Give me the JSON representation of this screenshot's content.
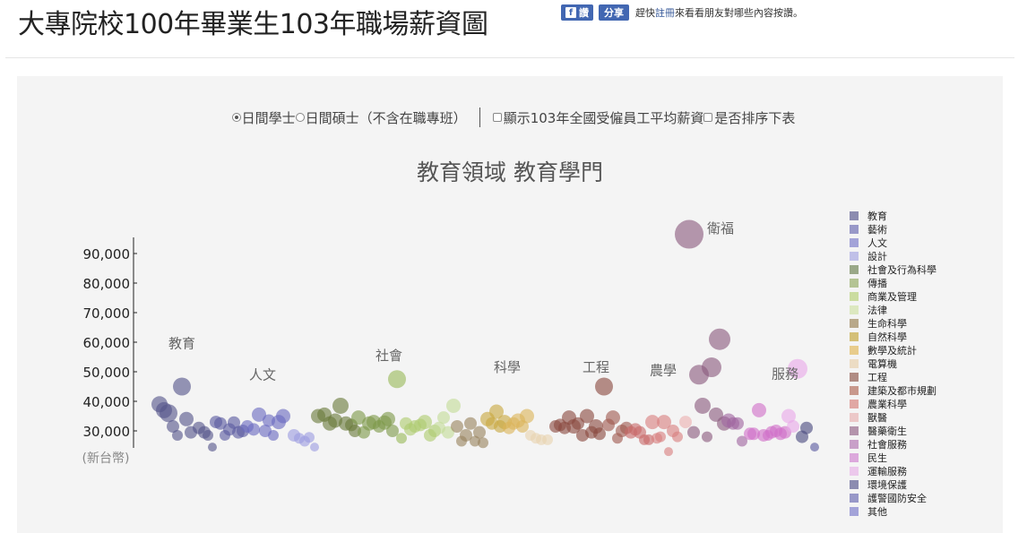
{
  "header": {
    "title": "大專院校100年畢業生103年職場薪資圖",
    "fb_label": "讚",
    "share_label": "分享",
    "social_text_before": "趕快",
    "social_link": "註冊",
    "social_text_after": "來看看朋友對哪些內容按讚。"
  },
  "controls": {
    "option1": "日間學士",
    "option2": "日間碩士（不含在職專班）",
    "check1": "顯示103年全國受僱員工平均薪資",
    "check2": "是否排序下表"
  },
  "chart_data": {
    "type": "scatter",
    "title": "教育領域 教育學門",
    "ylabel": "(新台幣)",
    "y_ticks": [
      "30,000",
      "40,000",
      "50,000",
      "60,000",
      "70,000",
      "80,000",
      "90,000"
    ],
    "y_tick_values": [
      30000,
      40000,
      50000,
      60000,
      70000,
      80000,
      90000
    ],
    "group_labels": [
      {
        "label": "教育",
        "value": 58000,
        "x": 203
      },
      {
        "label": "人文",
        "value": 47500,
        "x": 293
      },
      {
        "label": "社會",
        "value": 54000,
        "x": 434
      },
      {
        "label": "科學",
        "value": 50000,
        "x": 566
      },
      {
        "label": "工程",
        "value": 50000,
        "x": 665
      },
      {
        "label": "農學",
        "value": 49000,
        "x": 740
      },
      {
        "label": "服務",
        "value": 47800,
        "x": 876
      },
      {
        "label": "衛福",
        "value": 97000,
        "x": 804
      }
    ],
    "legend": [
      {
        "name": "教育",
        "color": "#8c8cb0"
      },
      {
        "name": "藝術",
        "color": "#9898c8"
      },
      {
        "name": "人文",
        "color": "#a3a3d8"
      },
      {
        "name": "設計",
        "color": "#c0c0e8"
      },
      {
        "name": "社會及行為科學",
        "color": "#9aa888"
      },
      {
        "name": "傳播",
        "color": "#b4c494"
      },
      {
        "name": "商業及管理",
        "color": "#cbdca0"
      },
      {
        "name": "法律",
        "color": "#dce8c0"
      },
      {
        "name": "生命科學",
        "color": "#b8a88a"
      },
      {
        "name": "自然科學",
        "color": "#d4c078"
      },
      {
        "name": "數學及統計",
        "color": "#e8cc8c"
      },
      {
        "name": "電算機",
        "color": "#ecdcc4"
      },
      {
        "name": "工程",
        "color": "#b08c84"
      },
      {
        "name": "建築及都市規劃",
        "color": "#c8988c"
      },
      {
        "name": "農業科學",
        "color": "#e0a8a4"
      },
      {
        "name": "獸醫",
        "color": "#ecc8c8"
      },
      {
        "name": "醫藥衛生",
        "color": "#b494ac"
      },
      {
        "name": "社會服務",
        "color": "#c8a0c8"
      },
      {
        "name": "民生",
        "color": "#dca8dc"
      },
      {
        "name": "運輸服務",
        "color": "#ecc8ec"
      },
      {
        "name": "環境保護",
        "color": "#8c8cb0"
      },
      {
        "name": "護警國防安全",
        "color": "#9898c8"
      },
      {
        "name": "其他",
        "color": "#a3a3d8"
      }
    ],
    "points": [
      {
        "x": 178,
        "y": 39000,
        "r": 9,
        "c": "#56568a"
      },
      {
        "x": 183,
        "y": 37000,
        "r": 9,
        "c": "#56568a"
      },
      {
        "x": 188,
        "y": 36000,
        "r": 10,
        "c": "#56568a"
      },
      {
        "x": 203,
        "y": 45000,
        "r": 10,
        "c": "#56568a"
      },
      {
        "x": 193,
        "y": 31500,
        "r": 7,
        "c": "#56568a"
      },
      {
        "x": 198,
        "y": 28500,
        "r": 6,
        "c": "#56568a"
      },
      {
        "x": 208,
        "y": 34000,
        "r": 8,
        "c": "#56568a"
      },
      {
        "x": 213,
        "y": 29500,
        "r": 7,
        "c": "#56568a"
      },
      {
        "x": 222,
        "y": 31000,
        "r": 7,
        "c": "#56568a"
      },
      {
        "x": 228,
        "y": 29500,
        "r": 7,
        "c": "#56568a"
      },
      {
        "x": 232,
        "y": 28500,
        "r": 6,
        "c": "#56568a"
      },
      {
        "x": 237,
        "y": 24500,
        "r": 5,
        "c": "#56568a"
      },
      {
        "x": 241,
        "y": 33000,
        "r": 7,
        "c": "#5a5aa0"
      },
      {
        "x": 246,
        "y": 32500,
        "r": 7,
        "c": "#5a5aa0"
      },
      {
        "x": 251,
        "y": 28500,
        "r": 6,
        "c": "#5a5aa0"
      },
      {
        "x": 256,
        "y": 30500,
        "r": 7,
        "c": "#5a5aa0"
      },
      {
        "x": 261,
        "y": 32800,
        "r": 7,
        "c": "#5a5aa0"
      },
      {
        "x": 266,
        "y": 29500,
        "r": 7,
        "c": "#5a5aa0"
      },
      {
        "x": 271,
        "y": 30000,
        "r": 7,
        "c": "#5a5aa0"
      },
      {
        "x": 276,
        "y": 31500,
        "r": 7,
        "c": "#6a6ac0"
      },
      {
        "x": 283,
        "y": 30500,
        "r": 7,
        "c": "#6a6ac0"
      },
      {
        "x": 289,
        "y": 35500,
        "r": 8,
        "c": "#6a6ac0"
      },
      {
        "x": 296,
        "y": 30000,
        "r": 7,
        "c": "#6a6ac0"
      },
      {
        "x": 300,
        "y": 33500,
        "r": 7,
        "c": "#6a6ac0"
      },
      {
        "x": 305,
        "y": 28500,
        "r": 6,
        "c": "#6a6ac0"
      },
      {
        "x": 311,
        "y": 33000,
        "r": 8,
        "c": "#6a6ac0"
      },
      {
        "x": 316,
        "y": 35000,
        "r": 8,
        "c": "#6a6ac0"
      },
      {
        "x": 328,
        "y": 28500,
        "r": 7,
        "c": "#9d9de0"
      },
      {
        "x": 334,
        "y": 27500,
        "r": 6,
        "c": "#9d9de0"
      },
      {
        "x": 340,
        "y": 26500,
        "r": 6,
        "c": "#9d9de0"
      },
      {
        "x": 345,
        "y": 27800,
        "r": 6,
        "c": "#9d9de0"
      },
      {
        "x": 351,
        "y": 24500,
        "r": 5,
        "c": "#9d9de0"
      },
      {
        "x": 355,
        "y": 35000,
        "r": 8,
        "c": "#6a7a3c"
      },
      {
        "x": 362,
        "y": 35500,
        "r": 8,
        "c": "#6a7a3c"
      },
      {
        "x": 368,
        "y": 32500,
        "r": 8,
        "c": "#6a7a3c"
      },
      {
        "x": 374,
        "y": 33500,
        "r": 8,
        "c": "#6a7a3c"
      },
      {
        "x": 380,
        "y": 38500,
        "r": 9,
        "c": "#6a7a3c"
      },
      {
        "x": 386,
        "y": 32500,
        "r": 8,
        "c": "#6a7a3c"
      },
      {
        "x": 392,
        "y": 32000,
        "r": 7,
        "c": "#6a7a3c"
      },
      {
        "x": 396,
        "y": 30000,
        "r": 7,
        "c": "#6a7a3c"
      },
      {
        "x": 400,
        "y": 34500,
        "r": 8,
        "c": "#7e9a4a"
      },
      {
        "x": 406,
        "y": 29500,
        "r": 7,
        "c": "#7e9a4a"
      },
      {
        "x": 412,
        "y": 32500,
        "r": 8,
        "c": "#7e9a4a"
      },
      {
        "x": 417,
        "y": 33000,
        "r": 8,
        "c": "#7e9a4a"
      },
      {
        "x": 423,
        "y": 31500,
        "r": 7,
        "c": "#7e9a4a"
      },
      {
        "x": 429,
        "y": 32800,
        "r": 8,
        "c": "#7e9a4a"
      },
      {
        "x": 433,
        "y": 34000,
        "r": 8,
        "c": "#7e9a4a"
      },
      {
        "x": 438,
        "y": 30000,
        "r": 7,
        "c": "#7e9a4a"
      },
      {
        "x": 443,
        "y": 47500,
        "r": 10,
        "c": "#9aba5a"
      },
      {
        "x": 448,
        "y": 27500,
        "r": 6,
        "c": "#9aba5a"
      },
      {
        "x": 453,
        "y": 32500,
        "r": 7,
        "c": "#aecc70"
      },
      {
        "x": 458,
        "y": 30500,
        "r": 7,
        "c": "#aecc70"
      },
      {
        "x": 463,
        "y": 31500,
        "r": 7,
        "c": "#aecc70"
      },
      {
        "x": 469,
        "y": 32000,
        "r": 7,
        "c": "#aecc70"
      },
      {
        "x": 474,
        "y": 33000,
        "r": 8,
        "c": "#aecc70"
      },
      {
        "x": 480,
        "y": 28500,
        "r": 7,
        "c": "#aecc70"
      },
      {
        "x": 485,
        "y": 30000,
        "r": 7,
        "c": "#aecc70"
      },
      {
        "x": 490,
        "y": 31000,
        "r": 7,
        "c": "#c4dc98"
      },
      {
        "x": 495,
        "y": 34500,
        "r": 7,
        "c": "#c4dc98"
      },
      {
        "x": 500,
        "y": 29500,
        "r": 7,
        "c": "#c4dc98"
      },
      {
        "x": 506,
        "y": 38500,
        "r": 8,
        "c": "#c4dc98"
      },
      {
        "x": 510,
        "y": 31500,
        "r": 7,
        "c": "#9a8460"
      },
      {
        "x": 515,
        "y": 26500,
        "r": 6,
        "c": "#9a8460"
      },
      {
        "x": 520,
        "y": 28500,
        "r": 7,
        "c": "#9a8460"
      },
      {
        "x": 525,
        "y": 32500,
        "r": 7,
        "c": "#9a8460"
      },
      {
        "x": 530,
        "y": 26500,
        "r": 6,
        "c": "#9a8460"
      },
      {
        "x": 535,
        "y": 29500,
        "r": 7,
        "c": "#9a8460"
      },
      {
        "x": 539,
        "y": 26000,
        "r": 6,
        "c": "#9a8460"
      },
      {
        "x": 544,
        "y": 34000,
        "r": 8,
        "c": "#c8a840"
      },
      {
        "x": 549,
        "y": 32500,
        "r": 7,
        "c": "#c8a840"
      },
      {
        "x": 554,
        "y": 36500,
        "r": 8,
        "c": "#c8a840"
      },
      {
        "x": 558,
        "y": 31500,
        "r": 7,
        "c": "#c8a840"
      },
      {
        "x": 563,
        "y": 33000,
        "r": 8,
        "c": "#c8a840"
      },
      {
        "x": 568,
        "y": 31000,
        "r": 7,
        "c": "#dcb45a"
      },
      {
        "x": 573,
        "y": 32500,
        "r": 7,
        "c": "#dcb45a"
      },
      {
        "x": 578,
        "y": 33500,
        "r": 8,
        "c": "#dcb45a"
      },
      {
        "x": 583,
        "y": 31500,
        "r": 7,
        "c": "#dcb45a"
      },
      {
        "x": 588,
        "y": 35000,
        "r": 8,
        "c": "#dcb45a"
      },
      {
        "x": 592,
        "y": 28500,
        "r": 6,
        "c": "#e8d4b0"
      },
      {
        "x": 598,
        "y": 27500,
        "r": 6,
        "c": "#e8d4b0"
      },
      {
        "x": 604,
        "y": 27000,
        "r": 6,
        "c": "#e8d4b0"
      },
      {
        "x": 611,
        "y": 27000,
        "r": 6,
        "c": "#e8d4b0"
      },
      {
        "x": 620,
        "y": 31500,
        "r": 7,
        "c": "#8a4a40"
      },
      {
        "x": 625,
        "y": 32000,
        "r": 7,
        "c": "#8a4a40"
      },
      {
        "x": 630,
        "y": 31000,
        "r": 7,
        "c": "#8a4a40"
      },
      {
        "x": 635,
        "y": 34500,
        "r": 8,
        "c": "#8a4a40"
      },
      {
        "x": 640,
        "y": 31500,
        "r": 8,
        "c": "#8a4a40"
      },
      {
        "x": 645,
        "y": 32500,
        "r": 7,
        "c": "#8a4a40"
      },
      {
        "x": 650,
        "y": 28500,
        "r": 7,
        "c": "#8a4a40"
      },
      {
        "x": 655,
        "y": 35000,
        "r": 8,
        "c": "#8a4a40"
      },
      {
        "x": 660,
        "y": 29500,
        "r": 7,
        "c": "#8a4a40"
      },
      {
        "x": 665,
        "y": 31500,
        "r": 8,
        "c": "#8a4a40"
      },
      {
        "x": 669,
        "y": 29000,
        "r": 7,
        "c": "#8a4a40"
      },
      {
        "x": 674,
        "y": 45000,
        "r": 10,
        "c": "#8a4a40"
      },
      {
        "x": 679,
        "y": 32000,
        "r": 7,
        "c": "#a05a50"
      },
      {
        "x": 684,
        "y": 34500,
        "r": 8,
        "c": "#a05a50"
      },
      {
        "x": 689,
        "y": 27500,
        "r": 6,
        "c": "#a05a50"
      },
      {
        "x": 694,
        "y": 30000,
        "r": 7,
        "c": "#a05a50"
      },
      {
        "x": 699,
        "y": 31000,
        "r": 7,
        "c": "#a05a50"
      },
      {
        "x": 704,
        "y": 29500,
        "r": 7,
        "c": "#c86a6a"
      },
      {
        "x": 709,
        "y": 30500,
        "r": 7,
        "c": "#c86a6a"
      },
      {
        "x": 714,
        "y": 29500,
        "r": 7,
        "c": "#c86a6a"
      },
      {
        "x": 719,
        "y": 27000,
        "r": 6,
        "c": "#c86a6a"
      },
      {
        "x": 724,
        "y": 27000,
        "r": 6,
        "c": "#c86a6a"
      },
      {
        "x": 728,
        "y": 33000,
        "r": 8,
        "c": "#d88080"
      },
      {
        "x": 733,
        "y": 27500,
        "r": 6,
        "c": "#d88080"
      },
      {
        "x": 737,
        "y": 28000,
        "r": 6,
        "c": "#d88080"
      },
      {
        "x": 741,
        "y": 33000,
        "r": 8,
        "c": "#d88080"
      },
      {
        "x": 746,
        "y": 23000,
        "r": 5,
        "c": "#d88080"
      },
      {
        "x": 751,
        "y": 30000,
        "r": 7,
        "c": "#d88080"
      },
      {
        "x": 756,
        "y": 28000,
        "r": 6,
        "c": "#d88080"
      },
      {
        "x": 765,
        "y": 33000,
        "r": 7,
        "c": "#ecb0b0"
      },
      {
        "x": 769,
        "y": 96500,
        "r": 16,
        "c": "#8a5a7e"
      },
      {
        "x": 774,
        "y": 29500,
        "r": 7,
        "c": "#8a5a7e"
      },
      {
        "x": 780,
        "y": 49000,
        "r": 11,
        "c": "#8a5a7e"
      },
      {
        "x": 784,
        "y": 38500,
        "r": 9,
        "c": "#8a5a7e"
      },
      {
        "x": 789,
        "y": 28000,
        "r": 6,
        "c": "#8a5a7e"
      },
      {
        "x": 794,
        "y": 51500,
        "r": 11,
        "c": "#8a5a7e"
      },
      {
        "x": 799,
        "y": 35500,
        "r": 8,
        "c": "#8a5a7e"
      },
      {
        "x": 803,
        "y": 61000,
        "r": 12,
        "c": "#8a5a7e"
      },
      {
        "x": 808,
        "y": 32500,
        "r": 8,
        "c": "#8a5a7e"
      },
      {
        "x": 813,
        "y": 33500,
        "r": 8,
        "c": "#a066a0"
      },
      {
        "x": 818,
        "y": 32500,
        "r": 7,
        "c": "#a066a0"
      },
      {
        "x": 823,
        "y": 32500,
        "r": 7,
        "c": "#a066a0"
      },
      {
        "x": 828,
        "y": 26500,
        "r": 6,
        "c": "#a066a0"
      },
      {
        "x": 837,
        "y": 29000,
        "r": 7,
        "c": "#d070c8"
      },
      {
        "x": 841,
        "y": 29000,
        "r": 7,
        "c": "#d070c8"
      },
      {
        "x": 847,
        "y": 37000,
        "r": 8,
        "c": "#d070c8"
      },
      {
        "x": 852,
        "y": 28500,
        "r": 7,
        "c": "#d070c8"
      },
      {
        "x": 857,
        "y": 28500,
        "r": 6,
        "c": "#d070c8"
      },
      {
        "x": 861,
        "y": 29500,
        "r": 7,
        "c": "#d070c8"
      },
      {
        "x": 866,
        "y": 30000,
        "r": 7,
        "c": "#d070c8"
      },
      {
        "x": 871,
        "y": 29000,
        "r": 7,
        "c": "#d070c8"
      },
      {
        "x": 876,
        "y": 29500,
        "r": 7,
        "c": "#d070c8"
      },
      {
        "x": 880,
        "y": 35000,
        "r": 8,
        "c": "#e8a8e8"
      },
      {
        "x": 885,
        "y": 31500,
        "r": 7,
        "c": "#e8a8e8"
      },
      {
        "x": 890,
        "y": 51000,
        "r": 11,
        "c": "#e8a8e8"
      },
      {
        "x": 895,
        "y": 28000,
        "r": 7,
        "c": "#4a4a80"
      },
      {
        "x": 900,
        "y": 31000,
        "r": 7,
        "c": "#4a4a80"
      },
      {
        "x": 909,
        "y": 24500,
        "r": 5,
        "c": "#5a5aa0"
      }
    ]
  }
}
